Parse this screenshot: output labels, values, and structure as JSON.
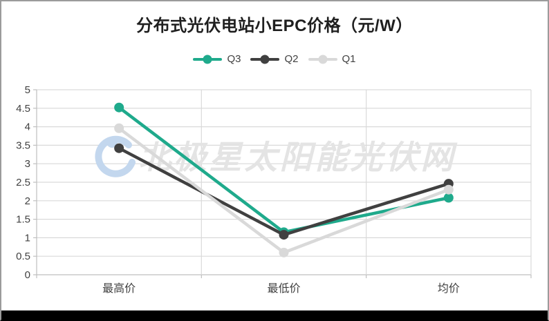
{
  "watermark": {
    "text": "北极星太阳能光伏网",
    "logo_icon": "polaris-swirl-logo"
  },
  "colors": {
    "q3": "#1faa8c",
    "q2": "#404040",
    "q1": "#d9d9d9",
    "gridline": "#d9d9d9",
    "axis_line": "#bfbfbf",
    "axis_text": "#404040",
    "title_text": "#1f1f1f",
    "watermark_text": "#e4e4e4",
    "watermark_logo": "#c3d7ee",
    "footer_bar": "#000000"
  },
  "chart_data": {
    "type": "line",
    "title": "分布式光伏电站小EPC价格（元/W）",
    "categories": [
      "最高价",
      "最低价",
      "均价"
    ],
    "series": [
      {
        "name": "Q3",
        "color": "#1faa8c",
        "values": [
          4.52,
          1.15,
          2.08
        ]
      },
      {
        "name": "Q2",
        "color": "#404040",
        "values": [
          3.42,
          1.08,
          2.46
        ]
      },
      {
        "name": "Q1",
        "color": "#d9d9d9",
        "values": [
          3.96,
          0.6,
          2.3
        ]
      }
    ],
    "draw_order_note": "Q3 drawn first, then Q2, Q1 on top",
    "ylim": [
      0,
      5
    ],
    "ytick_step": 0.5,
    "ytick_labels": [
      "0",
      "0.5",
      "1",
      "1.5",
      "2",
      "2.5",
      "3",
      "3.5",
      "4",
      "4.5",
      "5"
    ],
    "xlabel": "",
    "ylabel": "",
    "grid": true,
    "legend_position": "top-center"
  }
}
